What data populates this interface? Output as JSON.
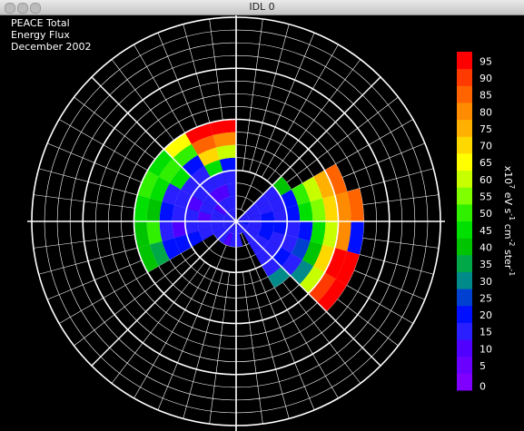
{
  "window": {
    "title": "IDL 0"
  },
  "chart_data": {
    "type": "polar-heatmap",
    "title_lines": [
      "PEACE Total",
      "Energy Flux",
      "December 2002"
    ],
    "cell_fields": [
      "theta",
      "ring",
      "value"
    ],
    "cells": [
      [
        97.5,
        0,
        15
      ],
      [
        97.5,
        1,
        15
      ],
      [
        97.5,
        2,
        15
      ],
      [
        97.5,
        3,
        15
      ],
      [
        97.5,
        4,
        20
      ],
      [
        97.5,
        5,
        60
      ],
      [
        97.5,
        6,
        80
      ],
      [
        97.5,
        7,
        95
      ],
      [
        112.5,
        0,
        15
      ],
      [
        112.5,
        1,
        15
      ],
      [
        112.5,
        2,
        10
      ],
      [
        112.5,
        3,
        15
      ],
      [
        112.5,
        4,
        45
      ],
      [
        112.5,
        5,
        70
      ],
      [
        112.5,
        6,
        85
      ],
      [
        112.5,
        7,
        95
      ],
      [
        127.5,
        0,
        15
      ],
      [
        127.5,
        1,
        15
      ],
      [
        127.5,
        2,
        10
      ],
      [
        127.5,
        3,
        15
      ],
      [
        127.5,
        4,
        15
      ],
      [
        127.5,
        5,
        20
      ],
      [
        127.5,
        6,
        50
      ],
      [
        127.5,
        7,
        65
      ],
      [
        142.5,
        0,
        15
      ],
      [
        142.5,
        1,
        10
      ],
      [
        142.5,
        2,
        15
      ],
      [
        142.5,
        3,
        15
      ],
      [
        142.5,
        4,
        15
      ],
      [
        142.5,
        5,
        45
      ],
      [
        142.5,
        6,
        50
      ],
      [
        142.5,
        7,
        45
      ],
      [
        157.5,
        0,
        15
      ],
      [
        157.5,
        1,
        15
      ],
      [
        157.5,
        2,
        15
      ],
      [
        157.5,
        3,
        10
      ],
      [
        157.5,
        4,
        15
      ],
      [
        157.5,
        5,
        15
      ],
      [
        157.5,
        6,
        45
      ],
      [
        157.5,
        7,
        50
      ],
      [
        172.5,
        0,
        15
      ],
      [
        172.5,
        1,
        15
      ],
      [
        172.5,
        2,
        10
      ],
      [
        172.5,
        3,
        15
      ],
      [
        172.5,
        4,
        15
      ],
      [
        172.5,
        5,
        20
      ],
      [
        172.5,
        6,
        40
      ],
      [
        172.5,
        7,
        45
      ],
      [
        187.5,
        0,
        15
      ],
      [
        187.5,
        1,
        15
      ],
      [
        187.5,
        2,
        15
      ],
      [
        187.5,
        3,
        15
      ],
      [
        187.5,
        4,
        10
      ],
      [
        187.5,
        5,
        15
      ],
      [
        187.5,
        6,
        50
      ],
      [
        187.5,
        7,
        40
      ],
      [
        202.5,
        0,
        15
      ],
      [
        202.5,
        1,
        15
      ],
      [
        202.5,
        2,
        15
      ],
      [
        202.5,
        3,
        20
      ],
      [
        202.5,
        4,
        20
      ],
      [
        202.5,
        5,
        20
      ],
      [
        202.5,
        6,
        35
      ],
      [
        202.5,
        7,
        40
      ],
      [
        217.5,
        0,
        15
      ],
      [
        217.5,
        1,
        15
      ],
      [
        232.5,
        0,
        15
      ],
      [
        232.5,
        1,
        15
      ],
      [
        247.5,
        0,
        15
      ],
      [
        247.5,
        1,
        10
      ],
      [
        262.5,
        0,
        15
      ],
      [
        262.5,
        1,
        15
      ],
      [
        277.5,
        0,
        15
      ],
      [
        277.5,
        1,
        15
      ],
      [
        292.5,
        0,
        15
      ],
      [
        307.5,
        0,
        15
      ],
      [
        307.5,
        1,
        15
      ],
      [
        307.5,
        2,
        15
      ],
      [
        307.5,
        3,
        15
      ],
      [
        307.5,
        4,
        15
      ],
      [
        307.5,
        5,
        30
      ],
      [
        322.5,
        0,
        15
      ],
      [
        322.5,
        1,
        15
      ],
      [
        322.5,
        2,
        15
      ],
      [
        322.5,
        3,
        15
      ],
      [
        322.5,
        4,
        20
      ],
      [
        322.5,
        5,
        15
      ],
      [
        322.5,
        6,
        30
      ],
      [
        322.5,
        7,
        60
      ],
      [
        322.5,
        8,
        90
      ],
      [
        322.5,
        9,
        95
      ],
      [
        337.5,
        0,
        15
      ],
      [
        337.5,
        1,
        15
      ],
      [
        337.5,
        2,
        20
      ],
      [
        337.5,
        3,
        15
      ],
      [
        337.5,
        4,
        15
      ],
      [
        337.5,
        5,
        25
      ],
      [
        337.5,
        6,
        40
      ],
      [
        337.5,
        7,
        70
      ],
      [
        337.5,
        8,
        95
      ],
      [
        337.5,
        9,
        95
      ],
      [
        352.5,
        0,
        20
      ],
      [
        352.5,
        1,
        15
      ],
      [
        352.5,
        2,
        20
      ],
      [
        352.5,
        3,
        20
      ],
      [
        352.5,
        4,
        15
      ],
      [
        352.5,
        5,
        20
      ],
      [
        352.5,
        6,
        45
      ],
      [
        352.5,
        7,
        60
      ],
      [
        352.5,
        8,
        80
      ],
      [
        352.5,
        9,
        20
      ],
      [
        7.5,
        0,
        15
      ],
      [
        7.5,
        1,
        15
      ],
      [
        7.5,
        2,
        20
      ],
      [
        7.5,
        3,
        15
      ],
      [
        7.5,
        4,
        20
      ],
      [
        7.5,
        5,
        45
      ],
      [
        7.5,
        6,
        55
      ],
      [
        7.5,
        7,
        70
      ],
      [
        7.5,
        8,
        80
      ],
      [
        7.5,
        9,
        85
      ],
      [
        22.5,
        0,
        15
      ],
      [
        22.5,
        1,
        15
      ],
      [
        22.5,
        2,
        15
      ],
      [
        22.5,
        3,
        15
      ],
      [
        22.5,
        4,
        20
      ],
      [
        22.5,
        5,
        50
      ],
      [
        22.5,
        6,
        60
      ],
      [
        22.5,
        7,
        75
      ],
      [
        22.5,
        8,
        85
      ],
      [
        37.5,
        0,
        15
      ],
      [
        37.5,
        1,
        15
      ],
      [
        37.5,
        2,
        15
      ],
      [
        37.5,
        3,
        15
      ],
      [
        37.5,
        4,
        40
      ]
    ],
    "colorbar": {
      "ticks": [
        0,
        5,
        10,
        15,
        20,
        25,
        30,
        35,
        40,
        45,
        50,
        55,
        60,
        65,
        70,
        75,
        80,
        85,
        90,
        95
      ],
      "colors": [
        "#8000ff",
        "#6a00ff",
        "#5000ff",
        "#2a20ff",
        "#0010ff",
        "#0040d0",
        "#008a8a",
        "#00a848",
        "#00c400",
        "#00e000",
        "#30f000",
        "#80ff00",
        "#c8ff00",
        "#ffff00",
        "#ffd800",
        "#ffb000",
        "#ff8c00",
        "#ff6400",
        "#ff3a00",
        "#ff0000"
      ],
      "label": [
        {
          "text": "x10",
          "sup": false
        },
        {
          "text": "7",
          "sup": true
        },
        {
          "text": " eV s",
          "sup": false
        },
        {
          "text": "-1",
          "sup": true
        },
        {
          "text": " cm",
          "sup": false
        },
        {
          "text": "-2",
          "sup": true
        },
        {
          "text": " ster",
          "sup": false
        },
        {
          "text": "-1",
          "sup": true
        }
      ]
    }
  }
}
